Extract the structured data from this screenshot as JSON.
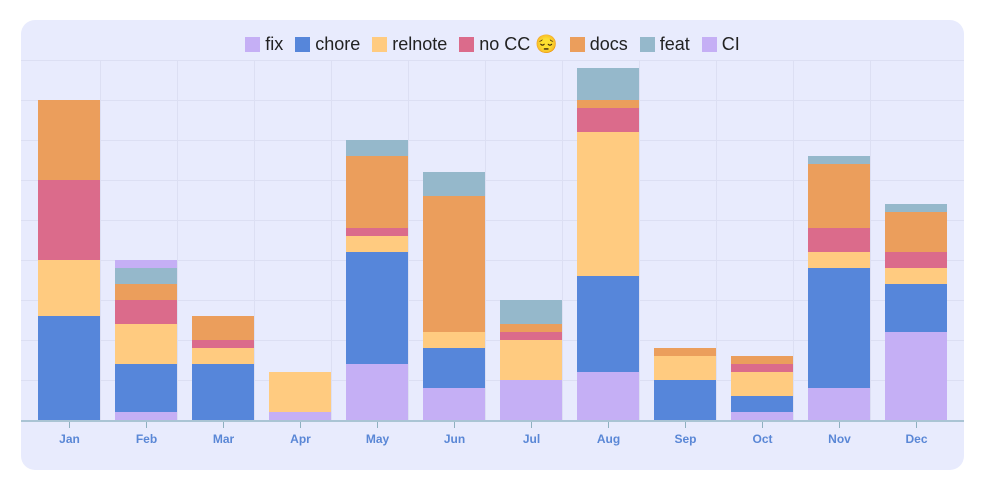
{
  "chart_data": {
    "type": "bar",
    "stacked": true,
    "title": "",
    "xlabel": "",
    "ylabel": "",
    "ylim": [
      0,
      45
    ],
    "grid": true,
    "legend_position": "top",
    "categories": [
      "Jan",
      "Feb",
      "Mar",
      "Apr",
      "May",
      "Jun",
      "Jul",
      "Aug",
      "Sep",
      "Oct",
      "Nov",
      "Dec"
    ],
    "series": [
      {
        "name": "fix",
        "color": "#c5aff5",
        "values": [
          0,
          1,
          0,
          1,
          7,
          4,
          5,
          6,
          0,
          1,
          4,
          11
        ]
      },
      {
        "name": "chore",
        "color": "#5686da",
        "values": [
          13,
          6,
          7,
          0,
          14,
          5,
          0,
          12,
          5,
          2,
          15,
          6
        ]
      },
      {
        "name": "relnote",
        "color": "#ffcb80",
        "values": [
          7,
          5,
          2,
          5,
          2,
          2,
          5,
          18,
          3,
          3,
          2,
          2
        ]
      },
      {
        "name": "no CC 😔",
        "color": "#db6b8b",
        "values": [
          10,
          3,
          1,
          0,
          1,
          0,
          1,
          3,
          0,
          1,
          3,
          2
        ]
      },
      {
        "name": "docs",
        "color": "#eb9e5c",
        "values": [
          10,
          2,
          3,
          0,
          9,
          17,
          1,
          1,
          1,
          1,
          8,
          5
        ]
      },
      {
        "name": "feat",
        "color": "#95b8cb",
        "values": [
          0,
          2,
          0,
          0,
          2,
          3,
          3,
          4,
          0,
          0,
          1,
          1
        ]
      },
      {
        "name": "CI",
        "color": "#c5aff5",
        "values": [
          0,
          1,
          0,
          0,
          0,
          0,
          0,
          0,
          0,
          0,
          0,
          0
        ]
      }
    ]
  },
  "legend": [
    {
      "label": "fix",
      "color": "#c5aff5"
    },
    {
      "label": "chore",
      "color": "#5686da"
    },
    {
      "label": "relnote",
      "color": "#ffcb80"
    },
    {
      "label": "no CC 😔",
      "color": "#db6b8b"
    },
    {
      "label": "docs",
      "color": "#eb9e5c"
    },
    {
      "label": "feat",
      "color": "#95b8cb"
    },
    {
      "label": "CI",
      "color": "#c5aff5"
    }
  ]
}
